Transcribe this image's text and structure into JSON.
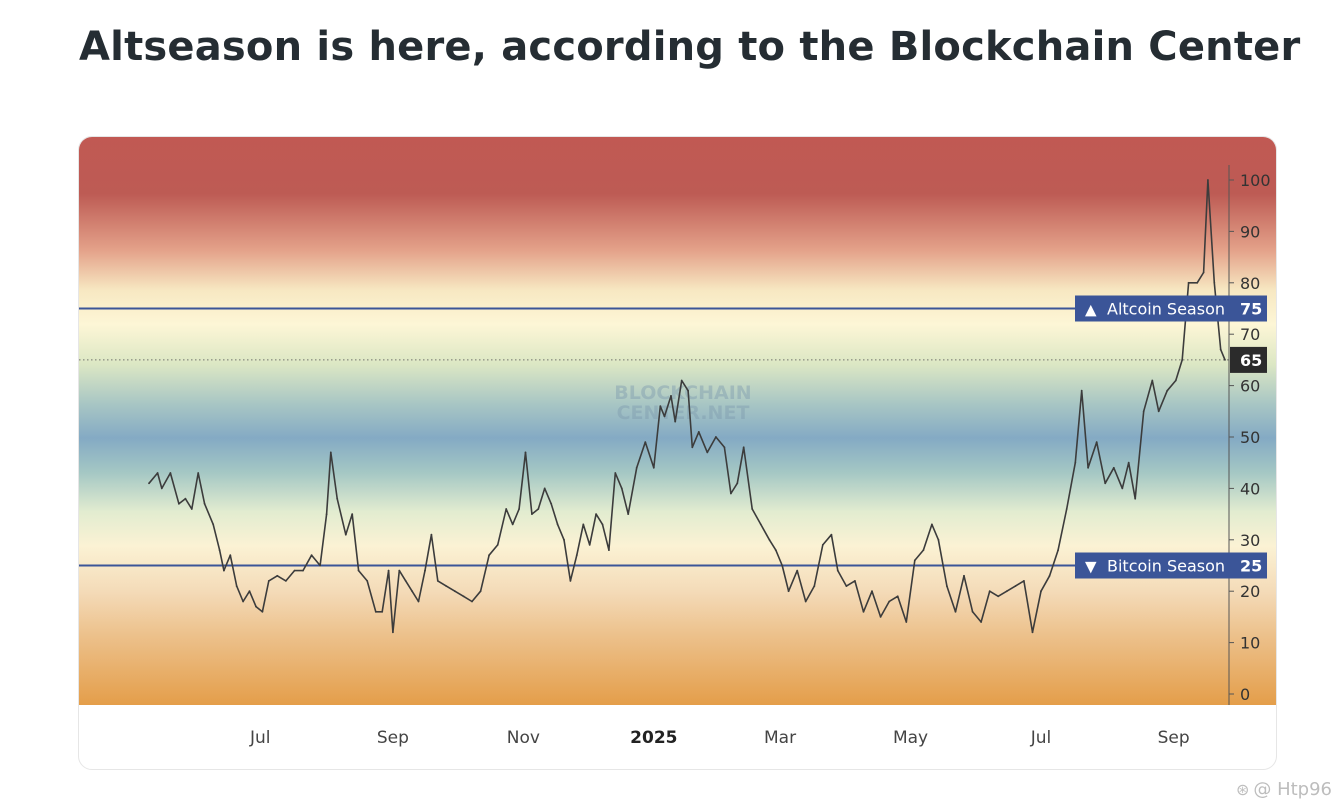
{
  "header": {
    "title": "Altseason is here, according to the Blockchain Center"
  },
  "watermark": {
    "icon": "weibo-icon",
    "text": "@ Htp96"
  },
  "chart_watermark": {
    "line1": "BLOCKCHAIN",
    "line2": "CENTER.NET"
  },
  "colors": {
    "altcoin_line": "#3b5598",
    "bitcoin_line": "#3b5598",
    "label_bg": "#3b5598",
    "current_bg": "#2b2b2b",
    "series": "#3c3c3c",
    "band_top": "#bf5853",
    "band_mid": "#7fa8c4",
    "band_bottom": "#e6a04b"
  },
  "chart_data": {
    "type": "line",
    "title": "",
    "xlabel": "",
    "ylabel": "",
    "ylim": [
      0,
      100
    ],
    "xlim": [
      "2024-05-10",
      "2025-09-25"
    ],
    "y_ticks": [
      0,
      10,
      20,
      30,
      40,
      50,
      60,
      70,
      80,
      90,
      100
    ],
    "y_tick_labels": [
      "0",
      "10",
      "20",
      "30",
      "40",
      "50",
      "60",
      "70",
      "80",
      "90",
      "100"
    ],
    "x_ticks": [
      {
        "date": "2024-07-01",
        "label": "Jul",
        "bold": false
      },
      {
        "date": "2024-09-01",
        "label": "Sep",
        "bold": false
      },
      {
        "date": "2024-11-01",
        "label": "Nov",
        "bold": false
      },
      {
        "date": "2025-01-01",
        "label": "2025",
        "bold": true
      },
      {
        "date": "2025-03-01",
        "label": "Mar",
        "bold": false
      },
      {
        "date": "2025-05-01",
        "label": "May",
        "bold": false
      },
      {
        "date": "2025-07-01",
        "label": "Jul",
        "bold": false
      },
      {
        "date": "2025-09-01",
        "label": "Sep",
        "bold": false
      }
    ],
    "reference_lines": [
      {
        "name": "Altcoin Season",
        "value": 75,
        "marker": "▲",
        "label": "Altcoin Season",
        "value_label": "75"
      },
      {
        "name": "Bitcoin Season",
        "value": 25,
        "marker": "▼",
        "label": "Bitcoin Season",
        "value_label": "25"
      }
    ],
    "current_value": {
      "value": 65,
      "label": "65"
    },
    "grid": false,
    "legend": "none",
    "series": [
      {
        "points": [
          [
            "2024-05-10",
            41
          ],
          [
            "2024-05-14",
            43
          ],
          [
            "2024-05-16",
            40
          ],
          [
            "2024-05-20",
            43
          ],
          [
            "2024-05-24",
            37
          ],
          [
            "2024-05-27",
            38
          ],
          [
            "2024-05-30",
            36
          ],
          [
            "2024-06-02",
            43
          ],
          [
            "2024-06-05",
            37
          ],
          [
            "2024-06-09",
            33
          ],
          [
            "2024-06-12",
            28
          ],
          [
            "2024-06-14",
            24
          ],
          [
            "2024-06-17",
            27
          ],
          [
            "2024-06-20",
            21
          ],
          [
            "2024-06-23",
            18
          ],
          [
            "2024-06-26",
            20
          ],
          [
            "2024-06-29",
            17
          ],
          [
            "2024-07-02",
            16
          ],
          [
            "2024-07-05",
            22
          ],
          [
            "2024-07-09",
            23
          ],
          [
            "2024-07-13",
            22
          ],
          [
            "2024-07-17",
            24
          ],
          [
            "2024-07-21",
            24
          ],
          [
            "2024-07-25",
            27
          ],
          [
            "2024-07-29",
            25
          ],
          [
            "2024-08-01",
            35
          ],
          [
            "2024-08-03",
            47
          ],
          [
            "2024-08-06",
            38
          ],
          [
            "2024-08-10",
            31
          ],
          [
            "2024-08-13",
            35
          ],
          [
            "2024-08-16",
            24
          ],
          [
            "2024-08-20",
            22
          ],
          [
            "2024-08-24",
            16
          ],
          [
            "2024-08-27",
            16
          ],
          [
            "2024-08-30",
            24
          ],
          [
            "2024-09-01",
            12
          ],
          [
            "2024-09-04",
            24
          ],
          [
            "2024-09-07",
            22
          ],
          [
            "2024-09-10",
            20
          ],
          [
            "2024-09-13",
            18
          ],
          [
            "2024-09-16",
            24
          ],
          [
            "2024-09-19",
            31
          ],
          [
            "2024-09-22",
            22
          ],
          [
            "2024-09-26",
            21
          ],
          [
            "2024-09-30",
            20
          ],
          [
            "2024-10-04",
            19
          ],
          [
            "2024-10-08",
            18
          ],
          [
            "2024-10-12",
            20
          ],
          [
            "2024-10-16",
            27
          ],
          [
            "2024-10-20",
            29
          ],
          [
            "2024-10-24",
            36
          ],
          [
            "2024-10-27",
            33
          ],
          [
            "2024-10-30",
            36
          ],
          [
            "2024-11-02",
            47
          ],
          [
            "2024-11-05",
            35
          ],
          [
            "2024-11-08",
            36
          ],
          [
            "2024-11-11",
            40
          ],
          [
            "2024-11-14",
            37
          ],
          [
            "2024-11-17",
            33
          ],
          [
            "2024-11-20",
            30
          ],
          [
            "2024-11-23",
            22
          ],
          [
            "2024-11-26",
            27
          ],
          [
            "2024-11-29",
            33
          ],
          [
            "2024-12-02",
            29
          ],
          [
            "2024-12-05",
            35
          ],
          [
            "2024-12-08",
            33
          ],
          [
            "2024-12-11",
            28
          ],
          [
            "2024-12-14",
            43
          ],
          [
            "2024-12-17",
            40
          ],
          [
            "2024-12-20",
            35
          ],
          [
            "2024-12-24",
            44
          ],
          [
            "2024-12-28",
            49
          ],
          [
            "2025-01-01",
            44
          ],
          [
            "2025-01-04",
            56
          ],
          [
            "2025-01-06",
            54
          ],
          [
            "2025-01-09",
            58
          ],
          [
            "2025-01-11",
            53
          ],
          [
            "2025-01-14",
            61
          ],
          [
            "2025-01-17",
            59
          ],
          [
            "2025-01-19",
            48
          ],
          [
            "2025-01-22",
            51
          ],
          [
            "2025-01-26",
            47
          ],
          [
            "2025-01-30",
            50
          ],
          [
            "2025-02-03",
            48
          ],
          [
            "2025-02-06",
            39
          ],
          [
            "2025-02-09",
            41
          ],
          [
            "2025-02-12",
            48
          ],
          [
            "2025-02-16",
            36
          ],
          [
            "2025-02-20",
            33
          ],
          [
            "2025-02-24",
            30
          ],
          [
            "2025-02-27",
            28
          ],
          [
            "2025-03-02",
            25
          ],
          [
            "2025-03-05",
            20
          ],
          [
            "2025-03-09",
            24
          ],
          [
            "2025-03-13",
            18
          ],
          [
            "2025-03-17",
            21
          ],
          [
            "2025-03-21",
            29
          ],
          [
            "2025-03-25",
            31
          ],
          [
            "2025-03-28",
            24
          ],
          [
            "2025-04-01",
            21
          ],
          [
            "2025-04-05",
            22
          ],
          [
            "2025-04-09",
            16
          ],
          [
            "2025-04-13",
            20
          ],
          [
            "2025-04-17",
            15
          ],
          [
            "2025-04-21",
            18
          ],
          [
            "2025-04-25",
            19
          ],
          [
            "2025-04-29",
            14
          ],
          [
            "2025-05-03",
            26
          ],
          [
            "2025-05-07",
            28
          ],
          [
            "2025-05-11",
            33
          ],
          [
            "2025-05-14",
            30
          ],
          [
            "2025-05-18",
            21
          ],
          [
            "2025-05-22",
            16
          ],
          [
            "2025-05-26",
            23
          ],
          [
            "2025-05-30",
            16
          ],
          [
            "2025-06-03",
            14
          ],
          [
            "2025-06-07",
            20
          ],
          [
            "2025-06-11",
            19
          ],
          [
            "2025-06-15",
            20
          ],
          [
            "2025-06-19",
            21
          ],
          [
            "2025-06-23",
            22
          ],
          [
            "2025-06-27",
            12
          ],
          [
            "2025-07-01",
            20
          ],
          [
            "2025-07-05",
            23
          ],
          [
            "2025-07-09",
            28
          ],
          [
            "2025-07-13",
            36
          ],
          [
            "2025-07-17",
            45
          ],
          [
            "2025-07-20",
            59
          ],
          [
            "2025-07-23",
            44
          ],
          [
            "2025-07-27",
            49
          ],
          [
            "2025-07-31",
            41
          ],
          [
            "2025-08-04",
            44
          ],
          [
            "2025-08-08",
            40
          ],
          [
            "2025-08-11",
            45
          ],
          [
            "2025-08-14",
            38
          ],
          [
            "2025-08-18",
            55
          ],
          [
            "2025-08-22",
            61
          ],
          [
            "2025-08-25",
            55
          ],
          [
            "2025-08-29",
            59
          ],
          [
            "2025-09-02",
            61
          ],
          [
            "2025-09-05",
            65
          ],
          [
            "2025-09-08",
            80
          ],
          [
            "2025-09-12",
            80
          ],
          [
            "2025-09-15",
            82
          ],
          [
            "2025-09-17",
            100
          ],
          [
            "2025-09-20",
            80
          ],
          [
            "2025-09-23",
            67
          ],
          [
            "2025-09-25",
            65
          ]
        ]
      }
    ]
  }
}
